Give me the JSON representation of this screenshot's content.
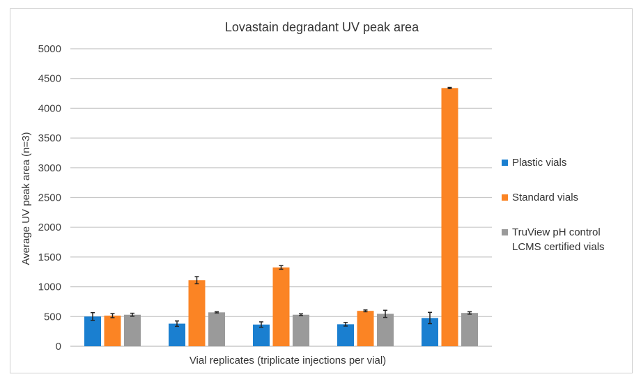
{
  "chart_data": {
    "type": "bar",
    "title": "Lovastain degradant UV peak area",
    "xlabel": "Vial replicates (triplicate injections per vial)",
    "ylabel": "Average UV peak area (n=3)",
    "ylim": [
      0,
      5000
    ],
    "yticks": [
      "0",
      "500",
      "1000",
      "1500",
      "2000",
      "2500",
      "3000",
      "3500",
      "4000",
      "4500",
      "5000"
    ],
    "grid": true,
    "legend_position": "right",
    "categories": [
      "",
      "",
      "",
      "",
      ""
    ],
    "series": [
      {
        "name": "Plastic vials",
        "color": "#1a7fd0",
        "values": [
          500,
          380,
          365,
          370,
          475
        ],
        "errors": [
          65,
          45,
          45,
          30,
          95
        ]
      },
      {
        "name": "Standard vials",
        "color": "#fb8424",
        "values": [
          515,
          1110,
          1325,
          595,
          4340
        ],
        "errors": [
          35,
          60,
          30,
          15,
          10
        ]
      },
      {
        "name": "TruView pH control LCMS certified vials",
        "color": "#9a9a9a",
        "values": [
          530,
          570,
          530,
          545,
          560
        ],
        "errors": [
          25,
          10,
          15,
          60,
          20
        ]
      }
    ]
  }
}
